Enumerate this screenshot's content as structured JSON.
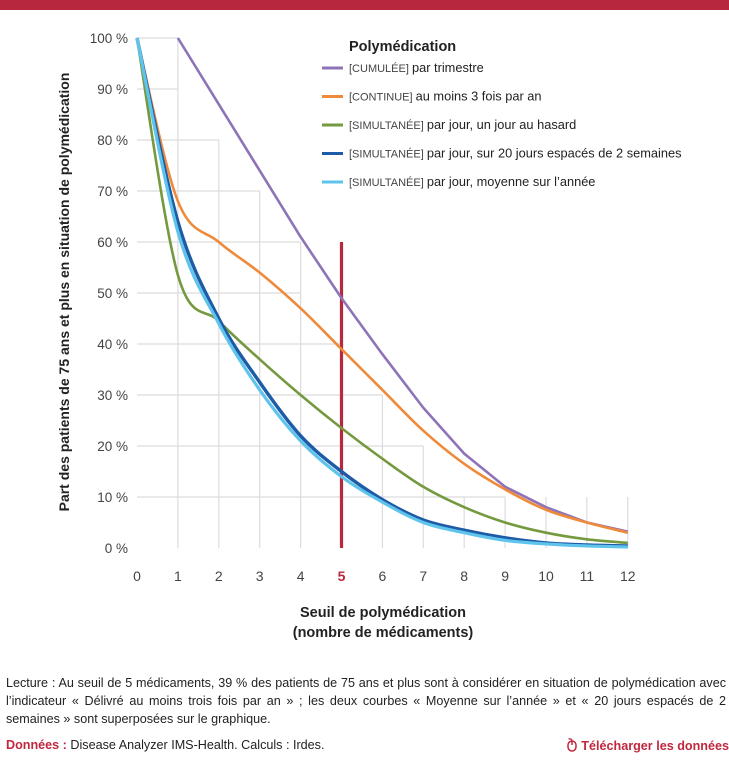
{
  "chart_data": {
    "type": "line",
    "legend_title": "Polymédication",
    "ylabel": "Part des patients de 75 ans et plus en situation de polymédication",
    "xlabel_line1": "Seuil de polymédication",
    "xlabel_line2": "(nombre de médicaments)",
    "x": [
      0,
      1,
      2,
      3,
      4,
      5,
      6,
      7,
      8,
      9,
      10,
      11,
      12
    ],
    "x_tick_labels": [
      "0",
      "1",
      "2",
      "3",
      "4",
      "5",
      "6",
      "7",
      "8",
      "9",
      "10",
      "11",
      "12"
    ],
    "y_tick_labels": [
      "0 %",
      "10 %",
      "20 %",
      "30 %",
      "40 %",
      "50 %",
      "60 %",
      "70 %",
      "80 %",
      "90 %",
      "100 %"
    ],
    "xlim": [
      0,
      12
    ],
    "ylim": [
      0,
      100
    ],
    "highlight_x": 5,
    "highlight_y_top": 60,
    "legend_position": "top-right",
    "series": [
      {
        "tag": "[CUMULÉE]",
        "name": "par trimestre",
        "color": "#8e73b8",
        "values": [
          100,
          100,
          87,
          74,
          61,
          49,
          38,
          27.5,
          18.5,
          12,
          8,
          5,
          3.2
        ]
      },
      {
        "tag": "[CONTINUE]",
        "name": "au moins 3 fois par an",
        "color": "#ee8a3a",
        "values": [
          100,
          68,
          60,
          54,
          47,
          39,
          31,
          23,
          16.5,
          11.5,
          7.5,
          5,
          3
        ]
      },
      {
        "tag": "[SIMULTANÉE]",
        "name": "par jour, un jour au hasard",
        "color": "#74993e",
        "values": [
          100,
          53.5,
          44.5,
          37,
          30,
          23.5,
          17.5,
          12,
          8,
          5,
          3,
          1.7,
          1
        ]
      },
      {
        "tag": "[SIMULTANÉE]",
        "name": "par jour, sur 20 jours espacés de 2 semaines",
        "color": "#1e5ba6",
        "values": [
          100,
          64,
          45,
          32.5,
          22,
          15,
          9.5,
          5.5,
          3.5,
          2,
          1,
          0.6,
          0.4
        ]
      },
      {
        "tag": "[SIMULTANÉE]",
        "name": "par jour, moyenne sur l’année",
        "color": "#5fc4ec",
        "values": [
          100,
          62,
          44,
          31,
          21,
          14,
          9,
          5,
          3,
          1.5,
          0.8,
          0.4,
          0.2
        ]
      }
    ]
  },
  "note": {
    "text": "Lecture : Au seuil de 5 médicaments, 39 % des patients de 75 ans et plus sont à considérer en situation de polymédication avec l’indicateur « Délivré au moins trois fois par an » ; les deux courbes « Moyenne sur l’année » et « 20 jours espacés de 2 semaines » sont superposées sur le graphique."
  },
  "source": {
    "label": "Données :",
    "text": "Disease Analyzer IMS-Health. Calculs : Irdes."
  },
  "download": {
    "label": "Télécharger les données",
    "icon": "mouse-icon"
  },
  "colors": {
    "brand_red": "#b8283d",
    "highlight": "#b8283d",
    "grid": "#dcdcdc"
  }
}
